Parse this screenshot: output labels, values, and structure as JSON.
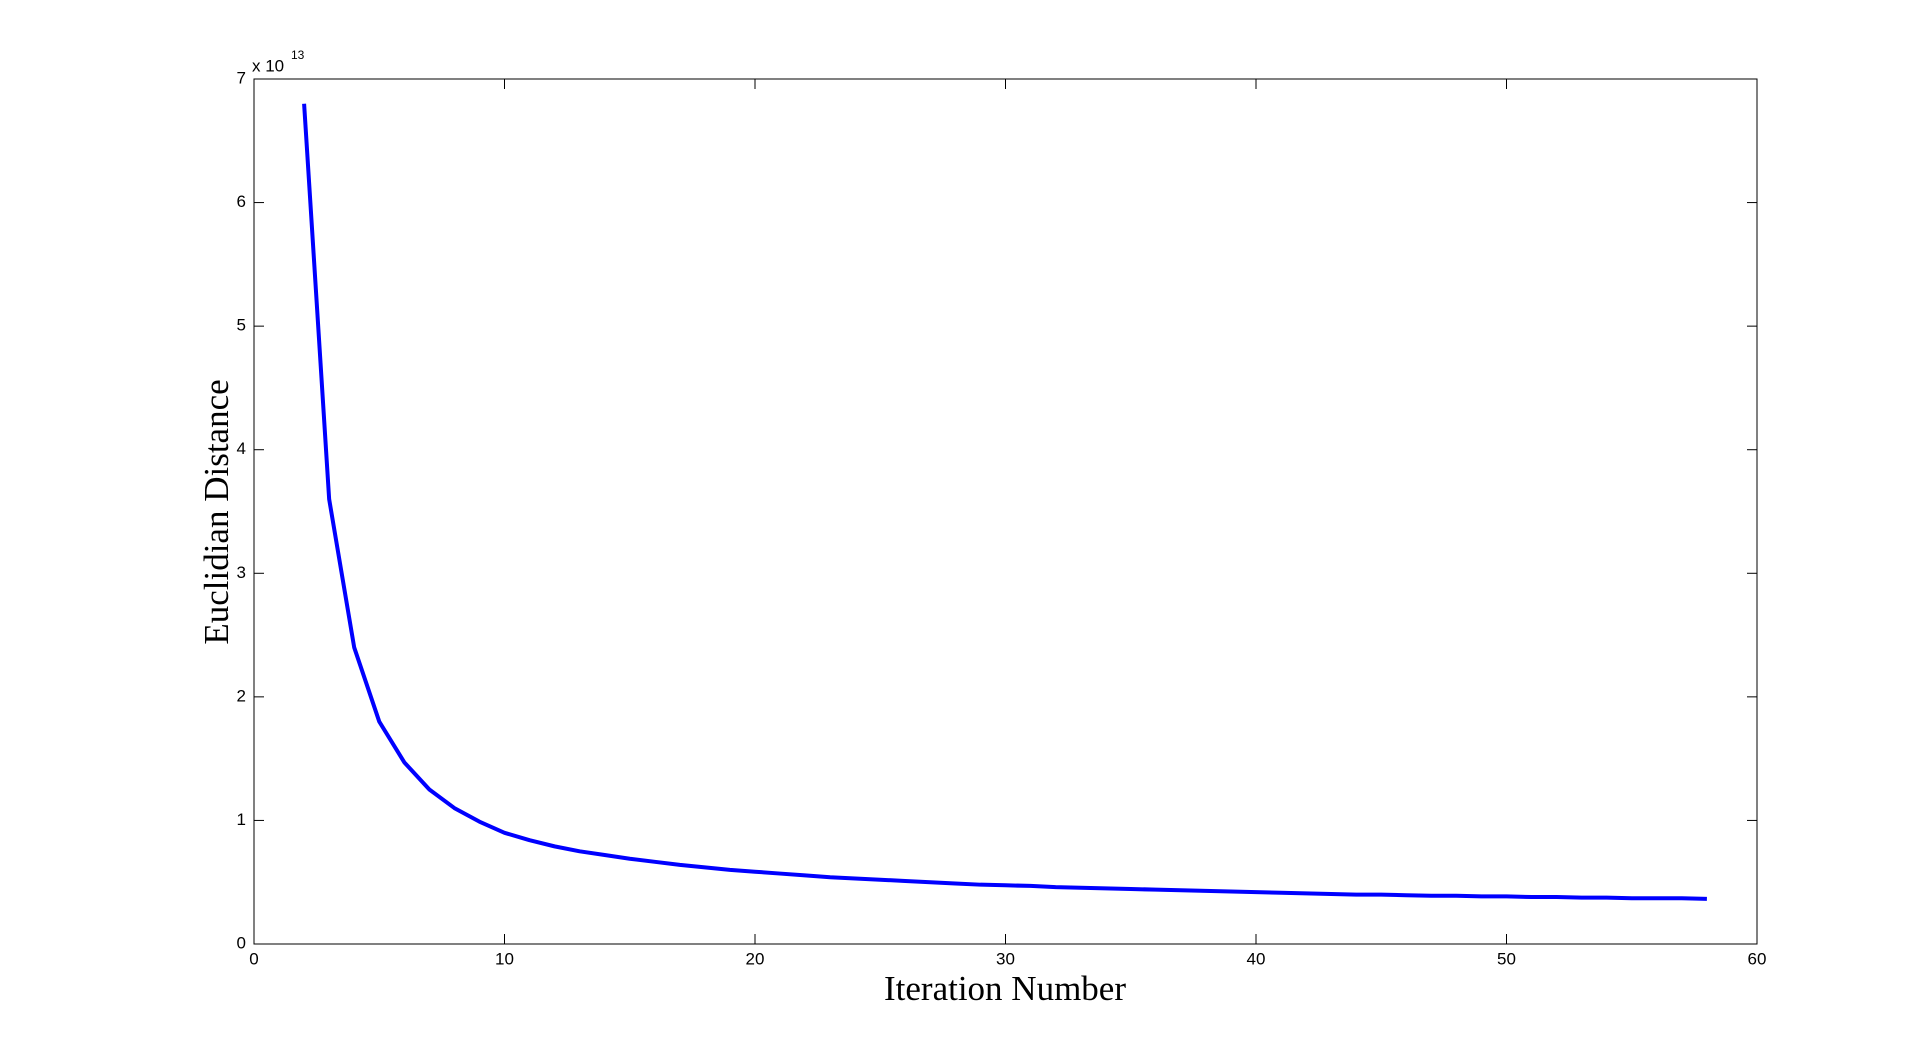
{
  "chart_data": {
    "type": "line",
    "xlabel": "Iteration Number",
    "ylabel": "Euclidian Distance",
    "y_scale_label": "x 10",
    "y_scale_exponent": "13",
    "x": [
      2,
      3,
      4,
      5,
      6,
      7,
      8,
      9,
      10,
      11,
      12,
      13,
      14,
      15,
      16,
      17,
      18,
      19,
      20,
      21,
      22,
      23,
      24,
      25,
      26,
      27,
      28,
      29,
      30,
      31,
      32,
      33,
      34,
      35,
      36,
      37,
      38,
      39,
      40,
      41,
      42,
      43,
      44,
      45,
      46,
      47,
      48,
      49,
      50,
      51,
      52,
      53,
      54,
      55,
      56,
      57,
      58
    ],
    "series": [
      {
        "color": "#0000ff",
        "values": [
          6.8,
          3.6,
          2.4,
          1.8,
          1.47,
          1.25,
          1.1,
          0.99,
          0.9,
          0.84,
          0.79,
          0.75,
          0.72,
          0.69,
          0.665,
          0.64,
          0.62,
          0.6,
          0.585,
          0.57,
          0.555,
          0.54,
          0.53,
          0.52,
          0.51,
          0.5,
          0.49,
          0.48,
          0.475,
          0.47,
          0.46,
          0.455,
          0.45,
          0.445,
          0.44,
          0.435,
          0.43,
          0.425,
          0.42,
          0.415,
          0.41,
          0.405,
          0.4,
          0.4,
          0.395,
          0.39,
          0.39,
          0.385,
          0.385,
          0.38,
          0.38,
          0.375,
          0.375,
          0.37,
          0.37,
          0.37,
          0.365
        ]
      }
    ],
    "xlim": [
      0,
      60
    ],
    "xticks": [
      0,
      10,
      20,
      30,
      40,
      50,
      60
    ],
    "ylim": [
      0,
      7
    ],
    "yticks": [
      0,
      1,
      2,
      3,
      4,
      5,
      6,
      7
    ],
    "grid": false
  }
}
